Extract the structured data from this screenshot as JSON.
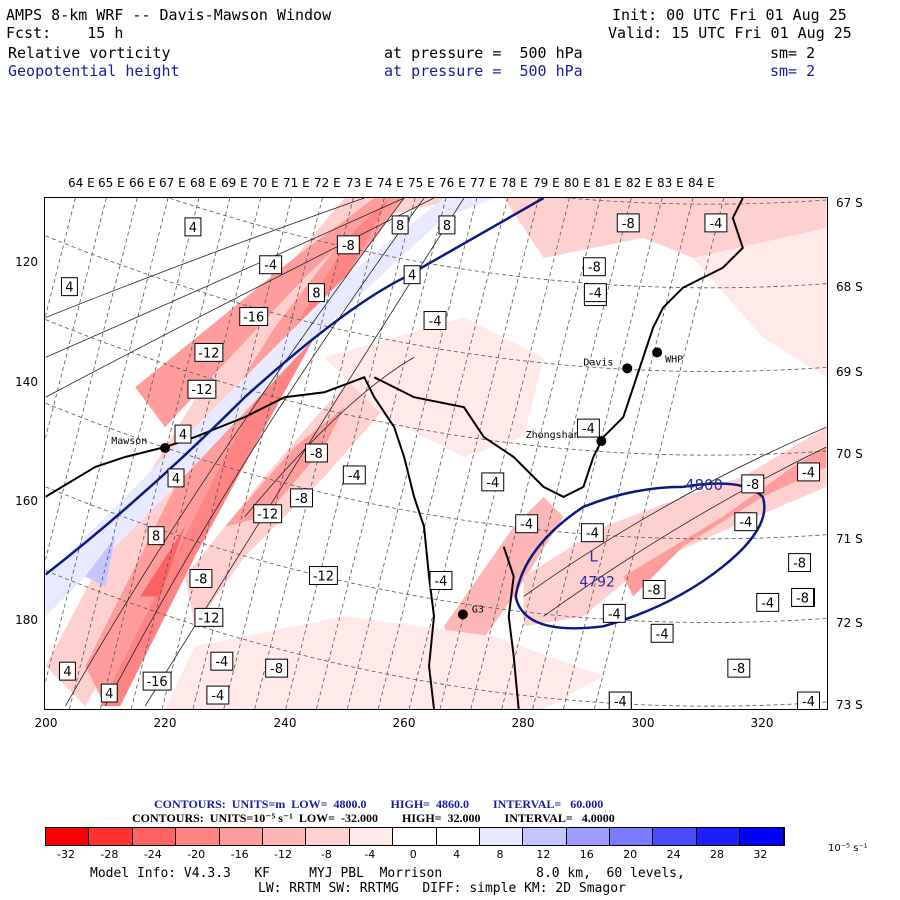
{
  "header": {
    "title": "AMPS 8-km WRF -- Davis-Mawson Window",
    "fcst": "Fcst:    15 h",
    "init": "Init: 00 UTC Fri 01 Aug 25",
    "valid": "Valid: 15 UTC Fri 01 Aug 25",
    "field1": "Relative vorticity",
    "field2": "Geopotential height",
    "pres1": "at pressure =  500 hPa",
    "pres2": "at pressure =  500 hPa",
    "sm1": "sm= 2",
    "sm2": "sm= 2"
  },
  "lon_labels": [
    "64 E",
    "65 E",
    "66 E",
    "67 E",
    "68 E",
    "69 E",
    "70 E",
    "71 E",
    "72 E",
    "73 E",
    "74 E",
    "75 E",
    "76 E",
    "77 E",
    "78 E",
    "79 E",
    "80 E",
    "81 E",
    "82 E",
    "83 E",
    "84 E"
  ],
  "lat_labels": [
    "67 S",
    "68 S",
    "69 S",
    "70 S",
    "71 S",
    "72 S",
    "73 S"
  ],
  "y_ticks": [
    "120",
    "140",
    "160",
    "180"
  ],
  "x_ticks": [
    "200",
    "220",
    "240",
    "260",
    "280",
    "300",
    "320"
  ],
  "stations": [
    "Mawson",
    "Davis",
    "WHP",
    "Zhongshan",
    "G3"
  ],
  "height_labels": {
    "contour": "4800",
    "low_marker": "L",
    "low_value": "4792"
  },
  "vort_labels": [
    "4",
    "4",
    "8",
    "8",
    "-4",
    "-8",
    "-8",
    "-8",
    "-8",
    "-4",
    "4",
    "8",
    "4",
    "-16",
    "-4",
    "-12",
    "-12",
    "-4",
    "-4",
    "-8",
    "4",
    "-4",
    "-8",
    "-4",
    "-4",
    "8",
    "-4",
    "-4",
    "-12",
    "-8",
    "-8",
    "-4",
    "-12",
    "-4",
    "-8",
    "-4",
    "-4",
    "-8",
    "-12",
    "-8",
    "-8",
    "-4",
    "-4",
    "4",
    "-16",
    "4",
    "-4",
    "-4",
    "-8",
    "-8",
    "-4",
    "-4",
    "-4"
  ],
  "contour_info": {
    "line1": "CONTOURS:  UNITS=m  LOW=  4800.0        HIGH=  4860.0        INTERVAL=   60.000",
    "line2": "CONTOURS:  UNITS=10⁻⁵ s⁻¹  LOW=  -32.000        HIGH=  32.000        INTERVAL=   4.0000"
  },
  "colorbar": {
    "labels": [
      "-32",
      "-28",
      "-24",
      "-20",
      "-16",
      "-12",
      "-8",
      "-4",
      "0",
      "4",
      "8",
      "12",
      "16",
      "20",
      "24",
      "28",
      "32"
    ],
    "units": "10⁻⁵ s⁻¹",
    "colors": [
      "#ff0000",
      "#ff3131",
      "#ff6262",
      "#ff8484",
      "#ff9d9d",
      "#ffb6b6",
      "#ffd0d0",
      "#ffe9e9",
      "#ffffff",
      "#ffffff",
      "#e9e9ff",
      "#c4c4ff",
      "#9d9dff",
      "#7b7bff",
      "#4a4aff",
      "#1e1eff",
      "#0000ff"
    ]
  },
  "footer": {
    "line1": "Model Info: V4.3.3   KF     MYJ PBL  Morrison            8.0 km,  60 levels,",
    "line2": "LW: RRTM SW: RRTMG   DIFF: simple KM: 2D Smagor"
  }
}
